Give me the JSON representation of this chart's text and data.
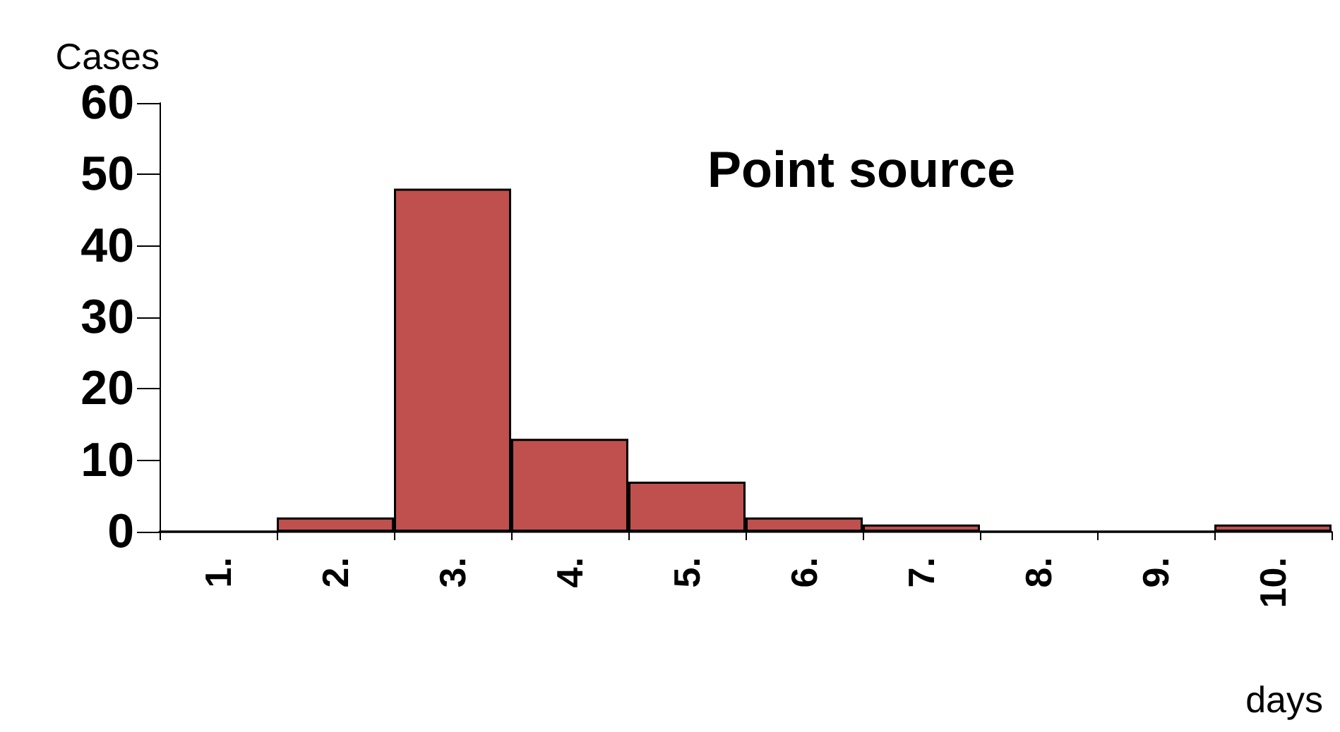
{
  "chart_data": {
    "type": "bar",
    "title": "Point source",
    "ylabel": "Cases",
    "xlabel": "days",
    "categories": [
      "1.",
      "2.",
      "3.",
      "4.",
      "5.",
      "6.",
      "7.",
      "8.",
      "9.",
      "10."
    ],
    "values": [
      0,
      2,
      48,
      13,
      7,
      2,
      1,
      0,
      0,
      1
    ],
    "color": "#c0504d",
    "ylim": [
      0,
      60
    ],
    "yticks": [
      0,
      10,
      20,
      30,
      40,
      50,
      60
    ],
    "grid": false
  }
}
